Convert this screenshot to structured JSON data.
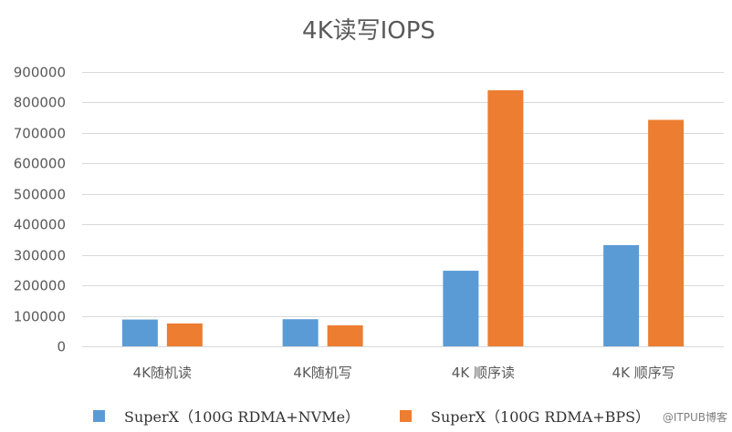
{
  "chart_data": {
    "type": "bar",
    "title": "4K读写IOPS",
    "categories": [
      "4K随机读",
      "4K随机写",
      "4K 顺序读",
      "4K 顺序写"
    ],
    "series": [
      {
        "name": "SuperX（100G RDMA+NVMe）",
        "color": "#5B9BD5",
        "values": [
          88000,
          89000,
          248000,
          332000
        ]
      },
      {
        "name": "SuperX（100G RDMA+BPS）",
        "color": "#ED7D31",
        "values": [
          75000,
          69000,
          840000,
          743000
        ]
      }
    ],
    "ylim": [
      0,
      900000
    ],
    "yticks": [
      "0",
      "100000",
      "200000",
      "300000",
      "400000",
      "500000",
      "600000",
      "700000",
      "800000",
      "900000"
    ],
    "xlabel": "",
    "ylabel": "",
    "grid": true,
    "legend_position": "bottom"
  },
  "watermark": "@ITPUB博客"
}
